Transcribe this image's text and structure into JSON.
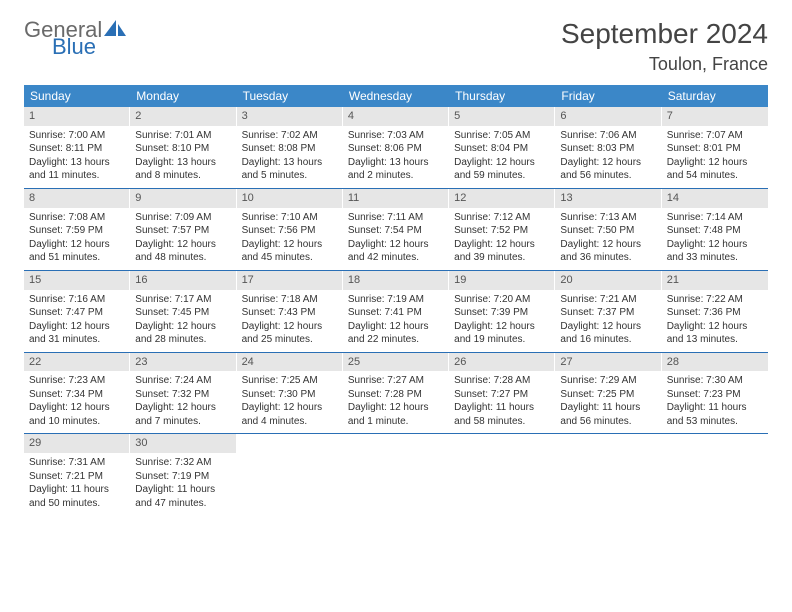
{
  "logo": {
    "general": "General",
    "blue": "Blue"
  },
  "title": "September 2024",
  "location": "Toulon, France",
  "header_color": "#3b87c8",
  "divider_color": "#2a6fb5",
  "daynum_bg": "#e6e6e6",
  "weekdays": [
    "Sunday",
    "Monday",
    "Tuesday",
    "Wednesday",
    "Thursday",
    "Friday",
    "Saturday"
  ],
  "weeks": [
    [
      {
        "n": "1",
        "sr": "7:00 AM",
        "ss": "8:11 PM",
        "dl": "13 hours and 11 minutes."
      },
      {
        "n": "2",
        "sr": "7:01 AM",
        "ss": "8:10 PM",
        "dl": "13 hours and 8 minutes."
      },
      {
        "n": "3",
        "sr": "7:02 AM",
        "ss": "8:08 PM",
        "dl": "13 hours and 5 minutes."
      },
      {
        "n": "4",
        "sr": "7:03 AM",
        "ss": "8:06 PM",
        "dl": "13 hours and 2 minutes."
      },
      {
        "n": "5",
        "sr": "7:05 AM",
        "ss": "8:04 PM",
        "dl": "12 hours and 59 minutes."
      },
      {
        "n": "6",
        "sr": "7:06 AM",
        "ss": "8:03 PM",
        "dl": "12 hours and 56 minutes."
      },
      {
        "n": "7",
        "sr": "7:07 AM",
        "ss": "8:01 PM",
        "dl": "12 hours and 54 minutes."
      }
    ],
    [
      {
        "n": "8",
        "sr": "7:08 AM",
        "ss": "7:59 PM",
        "dl": "12 hours and 51 minutes."
      },
      {
        "n": "9",
        "sr": "7:09 AM",
        "ss": "7:57 PM",
        "dl": "12 hours and 48 minutes."
      },
      {
        "n": "10",
        "sr": "7:10 AM",
        "ss": "7:56 PM",
        "dl": "12 hours and 45 minutes."
      },
      {
        "n": "11",
        "sr": "7:11 AM",
        "ss": "7:54 PM",
        "dl": "12 hours and 42 minutes."
      },
      {
        "n": "12",
        "sr": "7:12 AM",
        "ss": "7:52 PM",
        "dl": "12 hours and 39 minutes."
      },
      {
        "n": "13",
        "sr": "7:13 AM",
        "ss": "7:50 PM",
        "dl": "12 hours and 36 minutes."
      },
      {
        "n": "14",
        "sr": "7:14 AM",
        "ss": "7:48 PM",
        "dl": "12 hours and 33 minutes."
      }
    ],
    [
      {
        "n": "15",
        "sr": "7:16 AM",
        "ss": "7:47 PM",
        "dl": "12 hours and 31 minutes."
      },
      {
        "n": "16",
        "sr": "7:17 AM",
        "ss": "7:45 PM",
        "dl": "12 hours and 28 minutes."
      },
      {
        "n": "17",
        "sr": "7:18 AM",
        "ss": "7:43 PM",
        "dl": "12 hours and 25 minutes."
      },
      {
        "n": "18",
        "sr": "7:19 AM",
        "ss": "7:41 PM",
        "dl": "12 hours and 22 minutes."
      },
      {
        "n": "19",
        "sr": "7:20 AM",
        "ss": "7:39 PM",
        "dl": "12 hours and 19 minutes."
      },
      {
        "n": "20",
        "sr": "7:21 AM",
        "ss": "7:37 PM",
        "dl": "12 hours and 16 minutes."
      },
      {
        "n": "21",
        "sr": "7:22 AM",
        "ss": "7:36 PM",
        "dl": "12 hours and 13 minutes."
      }
    ],
    [
      {
        "n": "22",
        "sr": "7:23 AM",
        "ss": "7:34 PM",
        "dl": "12 hours and 10 minutes."
      },
      {
        "n": "23",
        "sr": "7:24 AM",
        "ss": "7:32 PM",
        "dl": "12 hours and 7 minutes."
      },
      {
        "n": "24",
        "sr": "7:25 AM",
        "ss": "7:30 PM",
        "dl": "12 hours and 4 minutes."
      },
      {
        "n": "25",
        "sr": "7:27 AM",
        "ss": "7:28 PM",
        "dl": "12 hours and 1 minute."
      },
      {
        "n": "26",
        "sr": "7:28 AM",
        "ss": "7:27 PM",
        "dl": "11 hours and 58 minutes."
      },
      {
        "n": "27",
        "sr": "7:29 AM",
        "ss": "7:25 PM",
        "dl": "11 hours and 56 minutes."
      },
      {
        "n": "28",
        "sr": "7:30 AM",
        "ss": "7:23 PM",
        "dl": "11 hours and 53 minutes."
      }
    ],
    [
      {
        "n": "29",
        "sr": "7:31 AM",
        "ss": "7:21 PM",
        "dl": "11 hours and 50 minutes."
      },
      {
        "n": "30",
        "sr": "7:32 AM",
        "ss": "7:19 PM",
        "dl": "11 hours and 47 minutes."
      },
      null,
      null,
      null,
      null,
      null
    ]
  ],
  "labels": {
    "sunrise": "Sunrise:",
    "sunset": "Sunset:",
    "daylight": "Daylight:"
  }
}
